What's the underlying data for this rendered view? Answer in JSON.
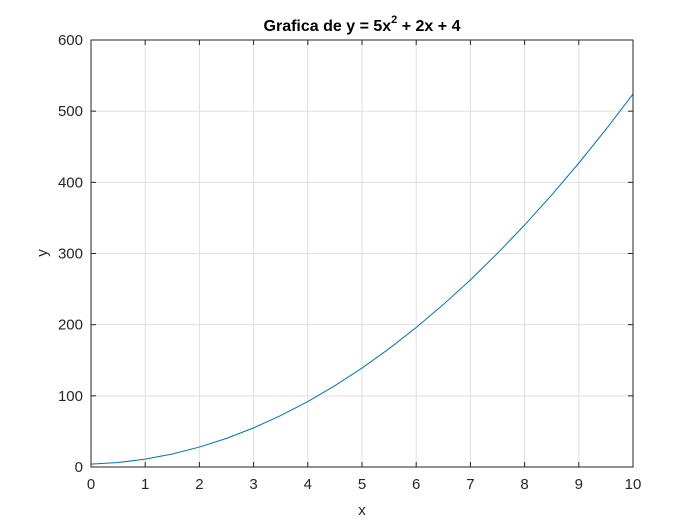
{
  "chart_data": {
    "type": "line",
    "title": {
      "prefix": "Grafica de y = 5x",
      "superscript": "2",
      "suffix": " + 2x + 4"
    },
    "xlabel": "x",
    "ylabel": "y",
    "xlim": [
      0,
      10
    ],
    "ylim": [
      0,
      600
    ],
    "xticks": [
      0,
      1,
      2,
      3,
      4,
      5,
      6,
      7,
      8,
      9,
      10
    ],
    "yticks": [
      0,
      100,
      200,
      300,
      400,
      500,
      600
    ],
    "grid": true,
    "series": [
      {
        "color": "#0072BD",
        "x": [
          0,
          0.5,
          1,
          1.5,
          2,
          2.5,
          3,
          3.5,
          4,
          4.5,
          5,
          5.5,
          6,
          6.5,
          7,
          7.5,
          8,
          8.5,
          9,
          9.5,
          10
        ],
        "y": [
          4,
          6.25,
          11,
          18.25,
          28,
          40.25,
          55,
          72.25,
          92,
          114.25,
          139,
          166.25,
          196,
          228.25,
          263,
          300.25,
          340,
          382.25,
          427,
          474.25,
          524
        ]
      }
    ]
  },
  "colors": {
    "grid": "#dfdfdf",
    "axes": "#262626",
    "background": "#ffffff"
  }
}
